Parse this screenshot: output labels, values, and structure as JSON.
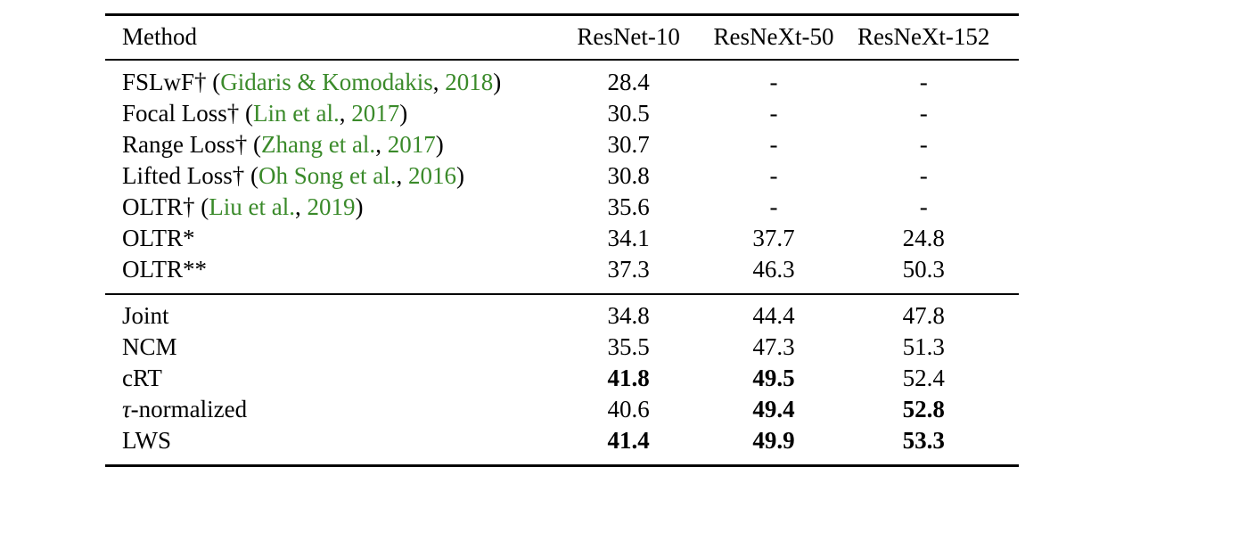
{
  "table": {
    "headers": [
      "Method",
      "ResNet-10",
      "ResNeXt-50",
      "ResNeXt-152"
    ],
    "group_a": [
      {
        "method": "FSLwF†",
        "pre": " (",
        "cite_a": "Gidaris & Komodakis",
        "mid": ", ",
        "cite_b": "2018",
        "post": ")",
        "r10": "28.4",
        "r50": "-",
        "r152": "-"
      },
      {
        "method": "Focal Loss†",
        "pre": " (",
        "cite_a": "Lin et al.",
        "mid": ", ",
        "cite_b": "2017",
        "post": ")",
        "r10": "30.5",
        "r50": "-",
        "r152": "-"
      },
      {
        "method": "Range Loss†",
        "pre": " (",
        "cite_a": "Zhang et al.",
        "mid": ", ",
        "cite_b": "2017",
        "post": ")",
        "r10": "30.7",
        "r50": "-",
        "r152": "-"
      },
      {
        "method": "Lifted Loss†",
        "pre": " (",
        "cite_a": "Oh Song et al.",
        "mid": ", ",
        "cite_b": "2016",
        "post": ")",
        "r10": "30.8",
        "r50": "-",
        "r152": "-"
      },
      {
        "method": "OLTR†",
        "pre": " (",
        "cite_a": "Liu et al.",
        "mid": ", ",
        "cite_b": "2019",
        "post": ")",
        "r10": "35.6",
        "r50": "-",
        "r152": "-"
      },
      {
        "method": "OLTR*",
        "r10": "34.1",
        "r50": "37.7",
        "r152": "24.8"
      },
      {
        "method": "OLTR**",
        "r10": "37.3",
        "r50": "46.3",
        "r152": "50.3"
      }
    ],
    "group_b": [
      {
        "method": "Joint",
        "r10": "34.8",
        "r50": "44.4",
        "r152": "47.8"
      },
      {
        "method": "NCM",
        "r10": "35.5",
        "r50": "47.3",
        "r152": "51.3"
      },
      {
        "method": "cRT",
        "r10": "41.8",
        "r50": "49.5",
        "r152": "52.4"
      },
      {
        "tau": "τ",
        "method": "-normalized",
        "r10": "40.6",
        "r50": "49.4",
        "r152": "52.8"
      },
      {
        "method": "LWS",
        "r10": "41.4",
        "r50": "49.9",
        "r152": "53.3"
      }
    ]
  },
  "colors": {
    "citation": "#3a8a2a"
  }
}
